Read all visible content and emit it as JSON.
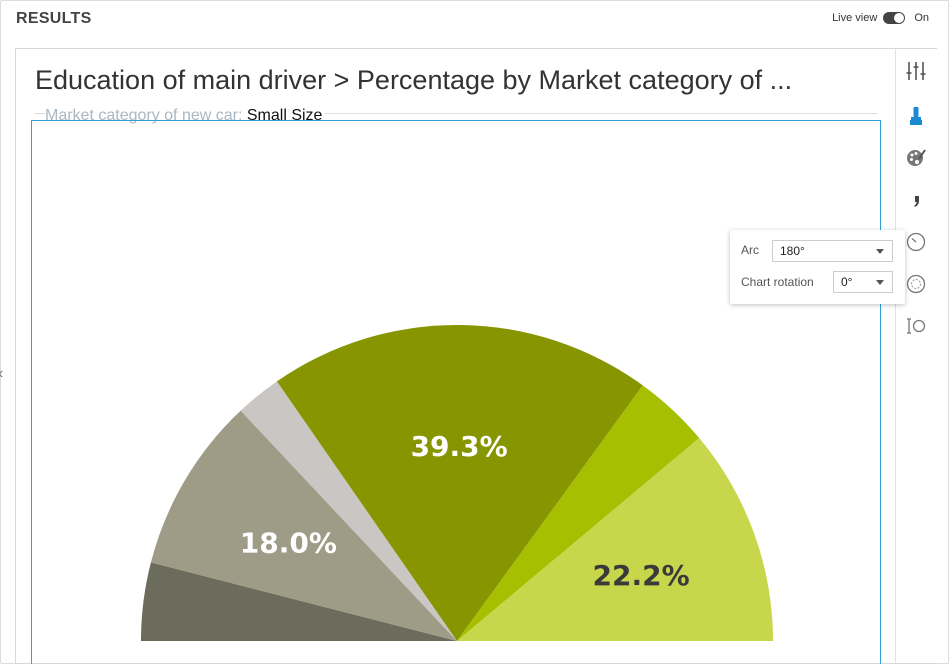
{
  "header": {
    "title": "RESULTS",
    "live_view_label": "Live view",
    "live_view_state": "On"
  },
  "chart_title": "Education of main driver > Percentage by Market category of ...",
  "filter": {
    "key": "Market category of new car: ",
    "value": "Small Size"
  },
  "settings_popover": {
    "arc_label": "Arc",
    "arc_value": "180°",
    "rotation_label": "Chart rotation",
    "rotation_value": "0°"
  },
  "sidebar_icons": [
    "sliders-icon",
    "paint-brush-icon",
    "palette-icon",
    "quote-icon",
    "gauge-icon",
    "target-icon",
    "size-icon"
  ],
  "chart_data": {
    "type": "pie",
    "arc_degrees": 180,
    "rotation_degrees": 0,
    "slices": [
      {
        "value": 8.0,
        "label": "",
        "color": "#6c6c5c"
      },
      {
        "value": 18.0,
        "label": "18.0%",
        "color": "#9e9b87"
      },
      {
        "value": 4.7,
        "label": "",
        "color": "#c9c6c3"
      },
      {
        "value": 39.3,
        "label": "39.3%",
        "color": "#869500"
      },
      {
        "value": 7.8,
        "label": "",
        "color": "#a6bf00"
      },
      {
        "value": 22.2,
        "label": "22.2%",
        "color": "#c8d64c"
      }
    ],
    "label_colors": {
      "dark_slice_text": "#ffffff",
      "light_slice_text": "#3a3a3a"
    }
  }
}
